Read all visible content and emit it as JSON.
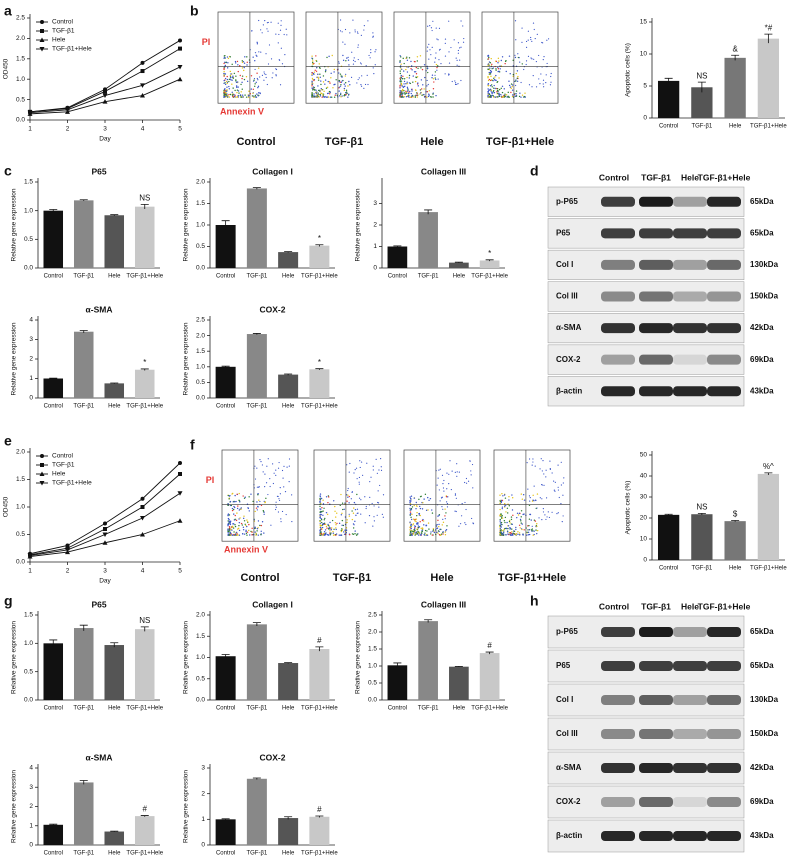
{
  "chart_data": [
    {
      "type": "line",
      "panel": "a",
      "y_label": "OD450",
      "x_label": "Day",
      "xlim": [
        1,
        5
      ],
      "xticks": [
        1,
        2,
        3,
        4,
        5
      ],
      "ylim": [
        0,
        2.5
      ],
      "yticks": [
        {
          "value": 0,
          "label": "0.0"
        },
        0.5,
        {
          "value": 1,
          "label": "1.0"
        },
        1.5,
        {
          "value": 2,
          "label": "2.0"
        },
        2.5
      ],
      "x": [
        1,
        2,
        3,
        4,
        5
      ],
      "series": [
        {
          "name": "Control",
          "color": "#111111",
          "values": [
            0.2,
            0.3,
            0.75,
            1.4,
            1.95
          ]
        },
        {
          "name": "TGF-β1",
          "color": "#111111",
          "values": [
            0.2,
            0.28,
            0.7,
            1.2,
            1.75
          ]
        },
        {
          "name": "Hele",
          "color": "#111111",
          "values": [
            0.15,
            0.2,
            0.45,
            0.6,
            1.0
          ]
        },
        {
          "name": "TGF-β1+Hele",
          "color": "#111111",
          "values": [
            0.18,
            0.25,
            0.6,
            0.85,
            1.3
          ]
        }
      ]
    },
    {
      "type": "bar",
      "y_label": "Apoptotic cells (%)",
      "categories": [
        "Control",
        "TGF-β1",
        "Hele",
        "TGF-β1+Hele"
      ],
      "values": [
        5.8,
        4.8,
        9.4,
        12.4
      ],
      "errors": [
        0.4,
        0.8,
        0.4,
        0.7
      ],
      "annotations": [
        null,
        "NS",
        "&",
        "*#"
      ],
      "colors": [
        "#111111",
        "#555555",
        "#777777",
        "#c8c8c8"
      ],
      "ylim": [
        0,
        15
      ],
      "yticks": [
        0,
        5,
        10,
        15
      ]
    },
    {
      "type": "bar",
      "panel": "c",
      "title": "P65",
      "y_label": "Relative gene expression",
      "categories": [
        "Control",
        "TGF-β1",
        "Hele",
        "TGF-β1+Hele"
      ],
      "values": [
        1.0,
        1.18,
        0.92,
        1.07
      ],
      "errors": [
        0.02,
        0.01,
        0.01,
        0.04
      ],
      "annotations": [
        null,
        null,
        null,
        "NS"
      ],
      "colors": [
        "#111111",
        "#888888",
        "#555555",
        "#c8c8c8"
      ],
      "ylim": [
        0,
        1.5
      ],
      "yticks": [
        {
          "value": 0,
          "label": "0.0"
        },
        0.5,
        {
          "value": 1,
          "label": "1.0"
        },
        1.5
      ]
    },
    {
      "type": "bar",
      "title": "Collagen I",
      "y_label": "Relative gene expression",
      "categories": [
        "Control",
        "TGF-β1",
        "Hele",
        "TGF-β1+Hele"
      ],
      "values": [
        1.0,
        1.85,
        0.37,
        0.52
      ],
      "errors": [
        0.1,
        0.02,
        0.01,
        0.02
      ],
      "annotations": [
        null,
        null,
        null,
        "*"
      ],
      "colors": [
        "#111111",
        "#888888",
        "#555555",
        "#c8c8c8"
      ],
      "ylim": [
        0,
        2
      ],
      "yticks": [
        {
          "value": 0,
          "label": "0.0"
        },
        0.5,
        {
          "value": 1,
          "label": "1.0"
        },
        1.5,
        {
          "value": 2,
          "label": "2.0"
        }
      ]
    },
    {
      "type": "bar",
      "title": "Collagen III",
      "y_label": "Relative gene expression",
      "categories": [
        "Control",
        "TGF-β1",
        "Hele",
        "TGF-β1+Hele"
      ],
      "values": [
        1.0,
        2.6,
        0.25,
        0.35
      ],
      "errors": [
        0.03,
        0.1,
        0.02,
        0.03
      ],
      "annotations": [
        null,
        null,
        null,
        "*"
      ],
      "colors": [
        "#111111",
        "#888888",
        "#555555",
        "#c8c8c8"
      ],
      "ylim": [
        0,
        4
      ],
      "yticks": [
        0,
        1,
        2,
        3
      ]
    },
    {
      "type": "bar",
      "title": "α-SMA",
      "y_label": "Relative gene expression",
      "categories": [
        "Control",
        "TGF-β1",
        "Hele",
        "TGF-β1+Hele"
      ],
      "values": [
        1.0,
        3.4,
        0.75,
        1.45
      ],
      "errors": [
        0.02,
        0.06,
        0.02,
        0.04
      ],
      "annotations": [
        null,
        null,
        null,
        "*"
      ],
      "colors": [
        "#111111",
        "#888888",
        "#555555",
        "#c8c8c8"
      ],
      "ylim": [
        0,
        4
      ],
      "yticks": [
        0,
        1,
        2,
        3,
        4
      ]
    },
    {
      "type": "bar",
      "title": "COX-2",
      "y_label": "Relative gene expression",
      "categories": [
        "Control",
        "TGF-β1",
        "Hele",
        "TGF-β1+Hele"
      ],
      "values": [
        1.0,
        2.05,
        0.75,
        0.92
      ],
      "errors": [
        0.02,
        0.02,
        0.02,
        0.02
      ],
      "annotations": [
        null,
        null,
        null,
        "*"
      ],
      "colors": [
        "#111111",
        "#888888",
        "#555555",
        "#c8c8c8"
      ],
      "ylim": [
        0,
        2.5
      ],
      "yticks": [
        {
          "value": 0,
          "label": "0.0"
        },
        0.5,
        {
          "value": 1,
          "label": "1.0"
        },
        1.5,
        {
          "value": 2,
          "label": "2.0"
        },
        2.5
      ]
    },
    {
      "type": "line",
      "panel": "e",
      "y_label": "OD450",
      "x_label": "Day",
      "xlim": [
        1,
        5
      ],
      "xticks": [
        1,
        2,
        3,
        4,
        5
      ],
      "ylim": [
        0,
        2
      ],
      "yticks": [
        {
          "value": 0,
          "label": "0.0"
        },
        0.5,
        {
          "value": 1,
          "label": "1.0"
        },
        1.5,
        {
          "value": 2,
          "label": "2.0"
        }
      ],
      "x": [
        1,
        2,
        3,
        4,
        5
      ],
      "series": [
        {
          "name": "Control",
          "color": "#111111",
          "values": [
            0.15,
            0.3,
            0.7,
            1.15,
            1.8
          ]
        },
        {
          "name": "TGF-β1",
          "color": "#111111",
          "values": [
            0.13,
            0.25,
            0.6,
            1.0,
            1.6
          ]
        },
        {
          "name": "Hele",
          "color": "#111111",
          "values": [
            0.1,
            0.18,
            0.35,
            0.5,
            0.75
          ]
        },
        {
          "name": "TGF-β1+Hele",
          "color": "#111111",
          "values": [
            0.12,
            0.22,
            0.5,
            0.8,
            1.25
          ]
        }
      ]
    },
    {
      "type": "bar",
      "y_label": "Apoptotic cells (%)",
      "categories": [
        "Control",
        "TGF-β1",
        "Hele",
        "TGF-β1+Hele"
      ],
      "values": [
        21.5,
        21.8,
        18.5,
        41
      ],
      "errors": [
        0.3,
        0.4,
        0.3,
        0.5
      ],
      "annotations": [
        null,
        "NS",
        "$",
        "%^"
      ],
      "colors": [
        "#111111",
        "#555555",
        "#777777",
        "#c8c8c8"
      ],
      "ylim": [
        0,
        50
      ],
      "yticks": [
        0,
        10,
        20,
        30,
        40,
        50
      ]
    },
    {
      "type": "bar",
      "panel": "g",
      "title": "P65",
      "y_label": "Relative gene expression",
      "categories": [
        "Control",
        "TGF-β1",
        "Hele",
        "TGF-β1+Hele"
      ],
      "values": [
        1.0,
        1.27,
        0.97,
        1.25
      ],
      "errors": [
        0.06,
        0.05,
        0.04,
        0.04
      ],
      "annotations": [
        null,
        null,
        null,
        "NS"
      ],
      "colors": [
        "#111111",
        "#888888",
        "#555555",
        "#c8c8c8"
      ],
      "ylim": [
        0,
        1.5
      ],
      "yticks": [
        {
          "value": 0,
          "label": "0.0"
        },
        0.5,
        {
          "value": 1,
          "label": "1.0"
        },
        1.5
      ]
    },
    {
      "type": "bar",
      "title": "Collagen I",
      "y_label": "Relative gene expression",
      "categories": [
        "Control",
        "TGF-β1",
        "Hele",
        "TGF-β1+Hele"
      ],
      "values": [
        1.03,
        1.78,
        0.87,
        1.2
      ],
      "errors": [
        0.04,
        0.04,
        0.01,
        0.05
      ],
      "annotations": [
        null,
        null,
        null,
        "#"
      ],
      "colors": [
        "#111111",
        "#888888",
        "#555555",
        "#c8c8c8"
      ],
      "ylim": [
        0,
        2
      ],
      "yticks": [
        {
          "value": 0,
          "label": "0.0"
        },
        0.5,
        {
          "value": 1,
          "label": "1.0"
        },
        1.5,
        {
          "value": 2,
          "label": "2.0"
        }
      ]
    },
    {
      "type": "bar",
      "title": "Collagen III",
      "y_label": "Relative gene expression",
      "categories": [
        "Control",
        "TGF-β1",
        "Hele",
        "TGF-β1+Hele"
      ],
      "values": [
        1.02,
        2.32,
        0.98,
        1.38
      ],
      "errors": [
        0.07,
        0.04,
        0.01,
        0.03
      ],
      "annotations": [
        null,
        null,
        null,
        "#"
      ],
      "colors": [
        "#111111",
        "#888888",
        "#555555",
        "#c8c8c8"
      ],
      "ylim": [
        0,
        2.5
      ],
      "yticks": [
        {
          "value": 0,
          "label": "0.0"
        },
        0.5,
        {
          "value": 1,
          "label": "1.0"
        },
        1.5,
        {
          "value": 2,
          "label": "2.0"
        },
        2.5
      ]
    },
    {
      "type": "bar",
      "title": "α-SMA",
      "y_label": "Relative gene expression",
      "categories": [
        "Control",
        "TGF-β1",
        "Hele",
        "TGF-β1+Hele"
      ],
      "values": [
        1.05,
        3.25,
        0.7,
        1.5
      ],
      "errors": [
        0.03,
        0.1,
        0.02,
        0.03
      ],
      "annotations": [
        null,
        null,
        null,
        "#"
      ],
      "colors": [
        "#111111",
        "#888888",
        "#555555",
        "#c8c8c8"
      ],
      "ylim": [
        0,
        4
      ],
      "yticks": [
        0,
        1,
        2,
        3,
        4
      ]
    },
    {
      "type": "bar",
      "title": "COX-2",
      "y_label": "Relative gene expression",
      "categories": [
        "Control",
        "TGF-β1",
        "Hele",
        "TGF-β1+Hele"
      ],
      "values": [
        1.0,
        2.58,
        1.05,
        1.1
      ],
      "errors": [
        0.02,
        0.03,
        0.05,
        0.03
      ],
      "annotations": [
        null,
        null,
        null,
        "#"
      ],
      "colors": [
        "#111111",
        "#888888",
        "#555555",
        "#c8c8c8"
      ],
      "ylim": [
        0,
        3
      ],
      "yticks": [
        0,
        1,
        2,
        3
      ]
    }
  ],
  "flow_panels": [
    {
      "panel": "b",
      "y_label": "PI",
      "x_label": "Annexin V",
      "samples": [
        "Control",
        "TGF-β1",
        "Hele",
        "TGF-β1+Hele"
      ]
    },
    {
      "panel": "f",
      "y_label": "PI",
      "x_label": "Annexin V",
      "samples": [
        "Control",
        "TGF-β1",
        "Hele",
        "TGF-β1+Hele"
      ]
    }
  ],
  "blots": [
    {
      "panel": "d",
      "samples": [
        "Control",
        "TGF-β1",
        "Hele",
        "TGF-β1+Hele"
      ],
      "proteins": [
        "p-P65",
        "P65",
        "Col I",
        "Col III",
        "α-SMA",
        "COX-2",
        "β-actin"
      ],
      "sizes": [
        "65kDa",
        "65kDa",
        "130kDa",
        "150kDa",
        "42kDa",
        "69kDa",
        "43kDa"
      ]
    },
    {
      "panel": "h",
      "samples": [
        "Control",
        "TGF-β1",
        "Hele",
        "TGF-β1+Hele"
      ],
      "proteins": [
        "p-P65",
        "P65",
        "Col I",
        "Col III",
        "α-SMA",
        "COX-2",
        "β-actin"
      ],
      "sizes": [
        "65kDa",
        "65kDa",
        "130kDa",
        "150kDa",
        "42kDa",
        "69kDa",
        "43kDa"
      ]
    }
  ]
}
